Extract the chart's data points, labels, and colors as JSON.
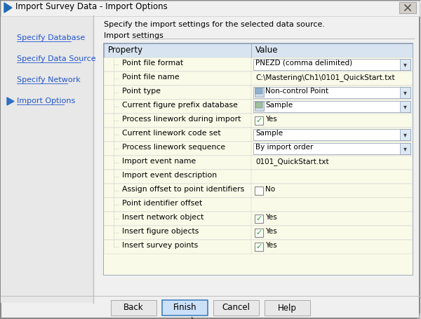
{
  "title": "Import Survey Data - Import Options",
  "dialog_bg": "#e8e8e8",
  "left_panel_bg": "#e8e8e8",
  "white": "#ffffff",
  "table_bg": "#fafae8",
  "header_bg": "#d8e4f0",
  "link_color": "#2255cc",
  "description": "Specify the import settings for the selected data source.",
  "section_label": "Import settings",
  "nav_items": [
    "Specify Database",
    "Specify Data Source",
    "Specify Network",
    "Import Options"
  ],
  "active_nav": 3,
  "col_headers": [
    "Property",
    "Value"
  ],
  "rows": [
    {
      "property": "Point file format",
      "value": "PNEZD (comma delimited)",
      "type": "dropdown"
    },
    {
      "property": "Point file name",
      "value": "C:\\Mastering\\Ch1\\0101_QuickStart.txt",
      "type": "text"
    },
    {
      "property": "Point type",
      "value": "Non-control Point",
      "type": "dropdown_icon"
    },
    {
      "property": "Current figure prefix database",
      "value": "Sample",
      "type": "dropdown_icon2"
    },
    {
      "property": "Process linework during import",
      "value": "Yes",
      "type": "checkbox_checked"
    },
    {
      "property": "Current linework code set",
      "value": "Sample",
      "type": "dropdown"
    },
    {
      "property": "Process linework sequence",
      "value": "By import order",
      "type": "dropdown"
    },
    {
      "property": "Import event name",
      "value": "0101_QuickStart.txt",
      "type": "text"
    },
    {
      "property": "Import event description",
      "value": "",
      "type": "text"
    },
    {
      "property": "Assign offset to point identifiers",
      "value": "No",
      "type": "checkbox_unchecked"
    },
    {
      "property": "Point identifier offset",
      "value": "",
      "type": "text"
    },
    {
      "property": "Insert network object",
      "value": "Yes",
      "type": "checkbox_checked"
    },
    {
      "property": "Insert figure objects",
      "value": "Yes",
      "type": "checkbox_checked"
    },
    {
      "property": "Insert survey points",
      "value": "Yes",
      "type": "checkbox_checked"
    }
  ],
  "buttons": [
    "Back",
    "Finish",
    "Cancel",
    "Help"
  ],
  "active_button": 1
}
